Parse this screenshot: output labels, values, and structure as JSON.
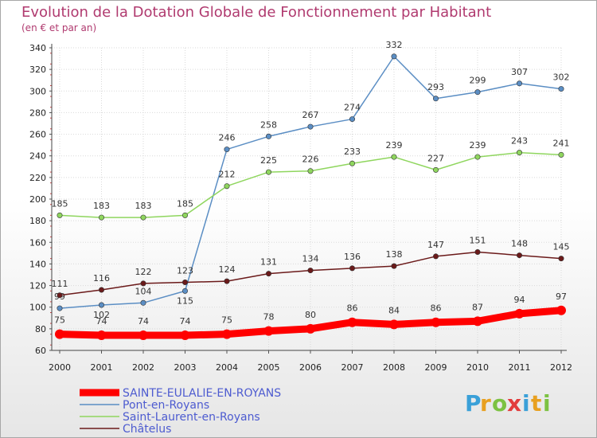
{
  "chart_data": {
    "type": "line",
    "title": "Evolution de la Dotation Globale de Fonctionnement par Habitant",
    "subtitle": "(en € et par an)",
    "x": [
      "2000",
      "2001",
      "2002",
      "2003",
      "2004",
      "2005",
      "2006",
      "2007",
      "2008",
      "2009",
      "2010",
      "2011",
      "2012"
    ],
    "ylim": [
      60,
      340
    ],
    "yticks": [
      60,
      80,
      100,
      120,
      140,
      160,
      180,
      200,
      220,
      240,
      260,
      280,
      300,
      320,
      340
    ],
    "grid": true,
    "legend_position": "bottom-left",
    "series": [
      {
        "name": "Pont-en-Royans",
        "color": "#5b8ec4",
        "values": [
          99,
          102,
          104,
          115,
          246,
          258,
          267,
          274,
          332,
          293,
          299,
          307,
          302
        ]
      },
      {
        "name": "Saint-Laurent-en-Royans",
        "color": "#8fd65e",
        "values": [
          185,
          183,
          183,
          185,
          212,
          225,
          226,
          233,
          239,
          227,
          239,
          243,
          241
        ]
      },
      {
        "name": "Châtelus",
        "color": "#6b1a1a",
        "values": [
          111,
          116,
          122,
          123,
          124,
          131,
          134,
          136,
          138,
          147,
          151,
          148,
          145
        ]
      },
      {
        "name": "SAINTE-EULALIE-EN-ROYANS",
        "color": "#ff0000",
        "values": [
          75,
          74,
          74,
          74,
          75,
          78,
          80,
          86,
          84,
          86,
          87,
          94,
          97
        ]
      }
    ],
    "legend_order": [
      "SAINTE-EULALIE-EN-ROYANS",
      "Pont-en-Royans",
      "Saint-Laurent-en-Royans",
      "Châtelus"
    ]
  },
  "logo": {
    "letters": [
      {
        "ch": "P",
        "color": "#3aa0d8"
      },
      {
        "ch": "r",
        "color": "#e8a020"
      },
      {
        "ch": "o",
        "color": "#7cc242"
      },
      {
        "ch": "x",
        "color": "#e23c3c"
      },
      {
        "ch": "i",
        "color": "#3aa0d8"
      },
      {
        "ch": "t",
        "color": "#e8a020"
      },
      {
        "ch": "i",
        "color": "#7cc242"
      }
    ]
  }
}
